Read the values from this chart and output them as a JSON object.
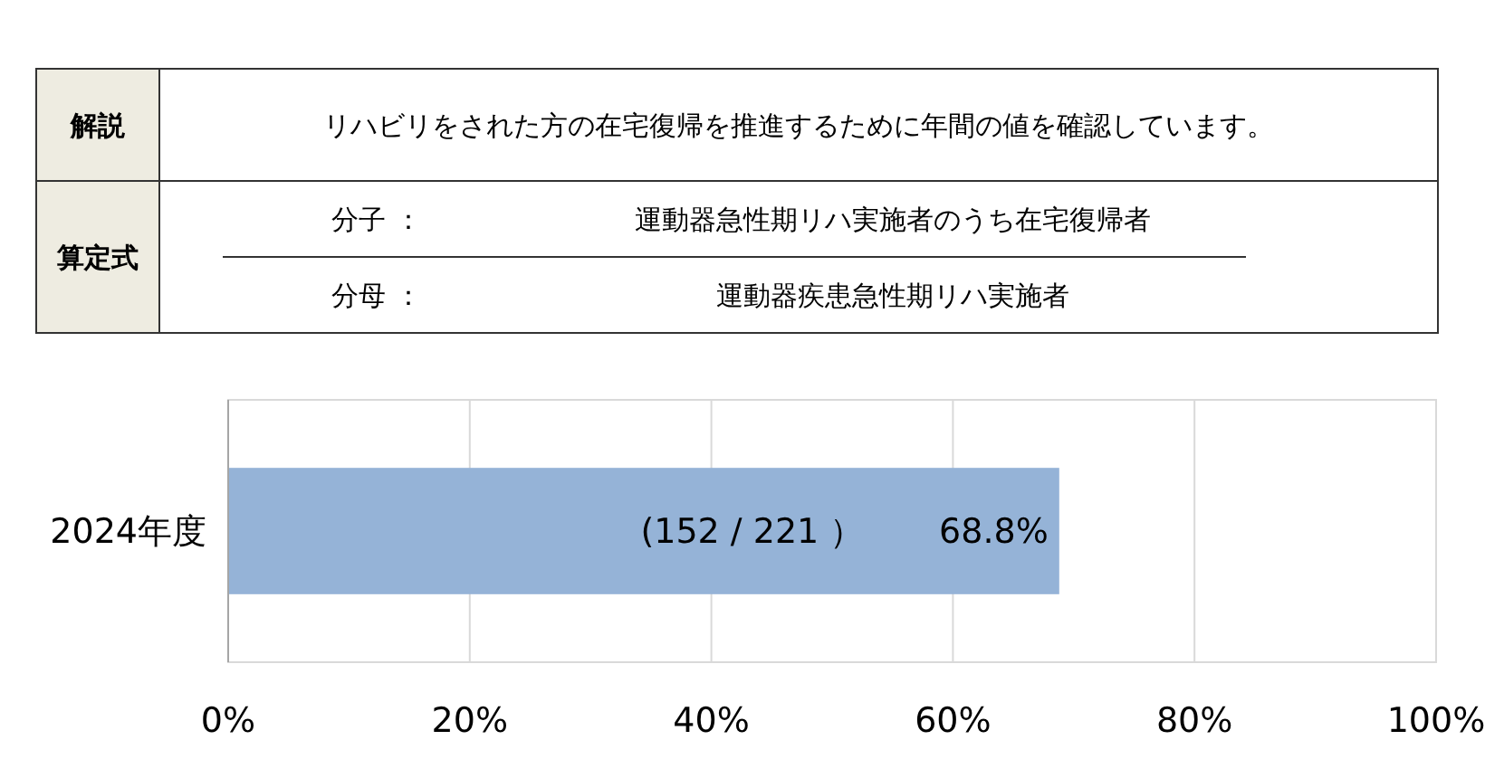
{
  "chart_data": {
    "type": "bar",
    "orientation": "horizontal",
    "categories": [
      "2024年度"
    ],
    "values": [
      68.8
    ],
    "value_labels": [
      "68.8%"
    ],
    "color": "#95b3d7",
    "xlim": [
      0,
      100
    ],
    "xticks": [
      {
        "value": 0,
        "label": "0%"
      },
      {
        "value": 20,
        "label": "20%"
      },
      {
        "value": 40,
        "label": "40%"
      },
      {
        "value": 60,
        "label": "60%"
      },
      {
        "value": 80,
        "label": "80%"
      },
      {
        "value": 100,
        "label": "100%"
      }
    ],
    "grid": "x",
    "annotations": [
      "解説",
      "リハビリをされた方の在宅復帰を推進するために年間の値を確認しています。",
      "算定式",
      "分子 ：",
      "運動器急性期リハ実施者のうち在宅復帰者",
      "分母 ：",
      "運動器疾患急性期リハ実施者",
      "(152 / 221 ）"
    ]
  }
}
